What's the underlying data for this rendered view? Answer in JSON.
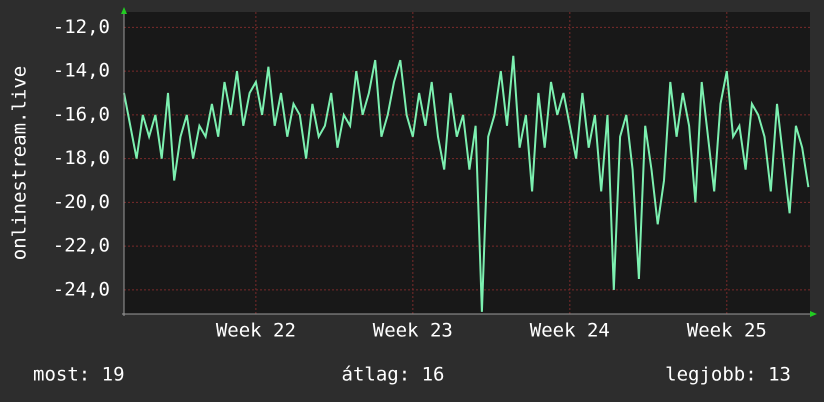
{
  "chart_data": {
    "type": "line",
    "y_label": "onlinestream.live",
    "x": [
      21.16,
      21.2,
      21.24,
      21.28,
      21.32,
      21.36,
      21.4,
      21.44,
      21.48,
      21.52,
      21.56,
      21.6,
      21.64,
      21.68,
      21.72,
      21.76,
      21.8,
      21.84,
      21.88,
      21.92,
      21.96,
      22,
      22.04,
      22.08,
      22.12,
      22.16,
      22.2,
      22.24,
      22.28,
      22.32,
      22.36,
      22.4,
      22.44,
      22.48,
      22.52,
      22.56,
      22.6,
      22.64,
      22.68,
      22.72,
      22.76,
      22.8,
      22.84,
      22.88,
      22.92,
      22.96,
      23,
      23.04,
      23.08,
      23.12,
      23.16,
      23.2,
      23.24,
      23.28,
      23.32,
      23.36,
      23.4,
      23.44,
      23.48,
      23.52,
      23.56,
      23.6,
      23.64,
      23.68,
      23.72,
      23.76,
      23.8,
      23.84,
      23.88,
      23.92,
      23.96,
      24,
      24.04,
      24.08,
      24.12,
      24.16,
      24.2,
      24.24,
      24.28,
      24.32,
      24.36,
      24.4,
      24.44,
      24.48,
      24.52,
      24.56,
      24.6,
      24.64,
      24.68,
      24.72,
      24.76,
      24.8,
      24.84,
      24.88,
      24.92,
      24.96,
      25,
      25.04,
      25.08,
      25.12,
      25.16,
      25.2,
      25.24,
      25.28,
      25.32,
      25.36,
      25.4,
      25.44,
      25.48,
      25.52
    ],
    "series": [
      {
        "color": "#7cf0b0",
        "values": [
          -15,
          -16.5,
          -18,
          -16,
          -17,
          -16,
          -18,
          -15,
          -19,
          -17,
          -16,
          -18,
          -16.5,
          -17,
          -15.5,
          -17,
          -14.5,
          -16,
          -14,
          -16.5,
          -15,
          -14.5,
          -16,
          -13.8,
          -16.5,
          -15,
          -17,
          -15.5,
          -16,
          -18,
          -15.5,
          -17,
          -16.5,
          -15,
          -17.5,
          -16,
          -16.5,
          -14,
          -16,
          -15,
          -13.5,
          -17,
          -16,
          -14.5,
          -13.5,
          -16,
          -17,
          -15,
          -16.5,
          -14.5,
          -17,
          -18.5,
          -15,
          -17,
          -16,
          -18.5,
          -16.5,
          -25,
          -17,
          -16,
          -14,
          -16.5,
          -13.3,
          -17.5,
          -16,
          -19.5,
          -15,
          -17.5,
          -14.5,
          -16,
          -15,
          -16.5,
          -18,
          -15,
          -17.5,
          -16,
          -19.5,
          -16,
          -24,
          -17,
          -16,
          -18.5,
          -23.5,
          -16.5,
          -18.5,
          -21,
          -19,
          -14.5,
          -17,
          -15,
          -16.5,
          -20,
          -14.5,
          -17,
          -19.5,
          -15.5,
          -14,
          -17,
          -16.5,
          -18.5,
          -15.5,
          -16,
          -17,
          -19.5,
          -15.5,
          -18,
          -20.5,
          -16.5,
          -17.5,
          -19.3
        ]
      }
    ],
    "xlim": [
      21.16,
      25.53
    ],
    "xticks": [
      {
        "value": 22,
        "label": "Week 22"
      },
      {
        "value": 23,
        "label": "Week 23"
      },
      {
        "value": 24,
        "label": "Week 24"
      },
      {
        "value": 25,
        "label": "Week 25"
      }
    ],
    "ylim": [
      -25.1,
      -11.3
    ],
    "yticks": [
      {
        "value": -12,
        "label": "-12,0"
      },
      {
        "value": -14,
        "label": "-14,0"
      },
      {
        "value": -16,
        "label": "-16,0"
      },
      {
        "value": -18,
        "label": "-18,0"
      },
      {
        "value": -20,
        "label": "-20,0"
      },
      {
        "value": -22,
        "label": "-22,0"
      },
      {
        "value": -24,
        "label": "-24,0"
      }
    ],
    "grid": true,
    "footer": {
      "current": "most: 19",
      "average": "átlag: 16",
      "best": "legjobb: 13"
    }
  }
}
